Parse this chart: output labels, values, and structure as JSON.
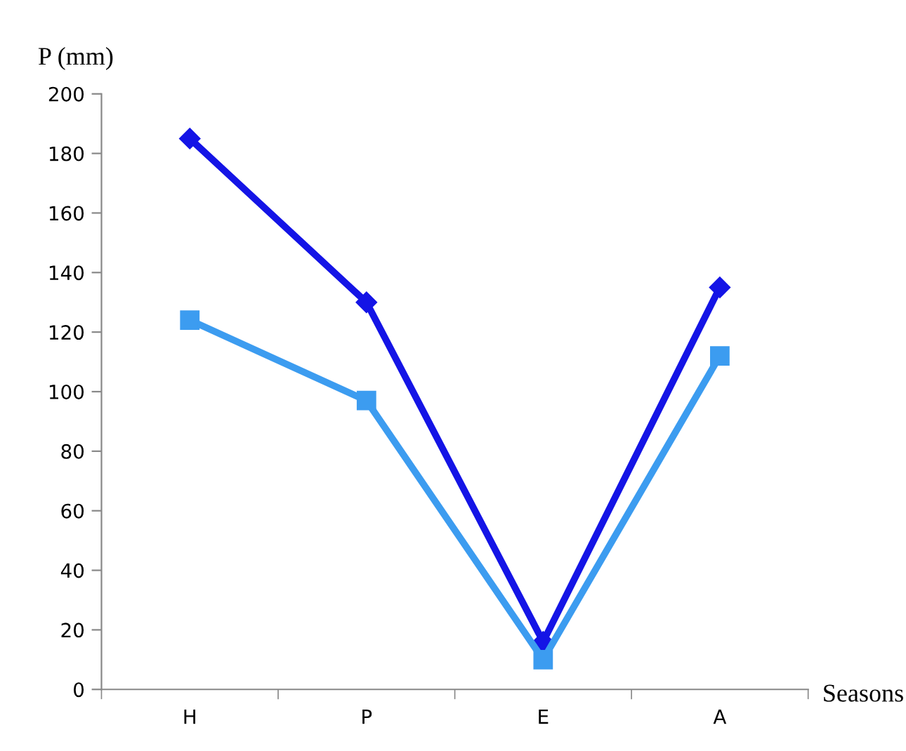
{
  "chart_data": {
    "type": "line",
    "ylabel": "P (mm)",
    "xlabel": "Seasons",
    "categories": [
      "H",
      "P",
      "E",
      "A"
    ],
    "series": [
      {
        "color": "#1414e6",
        "marker": "diamond",
        "values": [
          185,
          130,
          16,
          135
        ]
      },
      {
        "color": "#3c9cf0",
        "marker": "square",
        "values": [
          124,
          97,
          10,
          112
        ]
      }
    ],
    "ylim": [
      0,
      200
    ],
    "yticks": [
      0,
      20,
      40,
      60,
      80,
      100,
      120,
      140,
      160,
      180,
      200
    ],
    "grid": false,
    "legend": false,
    "line_style": "solid"
  }
}
